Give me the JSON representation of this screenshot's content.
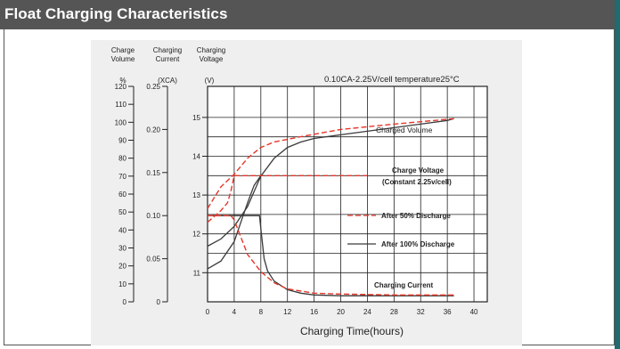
{
  "header": {
    "title": "Float Charging Characteristics"
  },
  "colors": {
    "header_bg": "#555555",
    "accent": "#1f6b70",
    "dark_series": "#3a3a3a",
    "red_series": "#e5372a"
  },
  "chart_data": {
    "type": "line",
    "xlabel": "Charging Time(hours)",
    "x_ticks": [
      "0",
      "4",
      "8",
      "12",
      "16",
      "20",
      "24",
      "28",
      "32",
      "36",
      "40"
    ],
    "xlim": [
      0,
      42
    ],
    "condition": "0.10CA-2.25V/cell   temperature25°C",
    "axes": [
      {
        "id": "volume",
        "title_line1": "Charge",
        "title_line2": "Volume",
        "unit": "%",
        "ticks": [
          "0",
          "10",
          "20",
          "30",
          "40",
          "50",
          "60",
          "70",
          "80",
          "90",
          "100",
          "110",
          "120"
        ],
        "range": [
          0,
          120
        ]
      },
      {
        "id": "current",
        "title_line1": "Charging",
        "title_line2": "Current",
        "unit": "(XCA)",
        "ticks": [
          "0",
          "0.05",
          "0.10",
          "0.15",
          "0.20",
          "0.25"
        ],
        "range": [
          0,
          0.25
        ]
      },
      {
        "id": "voltage",
        "title_line1": "Charging",
        "title_line2": "Voltage",
        "unit": "(V)",
        "ticks": [
          "11",
          "12",
          "13",
          "14",
          "15"
        ],
        "range": [
          10.25,
          15.8
        ]
      }
    ],
    "annotations": [
      {
        "id": "charged-volume",
        "text": "Charged Volume"
      },
      {
        "id": "charge-voltage",
        "text": "Charge Voltage"
      },
      {
        "id": "charge-voltage-sub",
        "text": "(Constant 2.25v/cell)"
      },
      {
        "id": "charging-current",
        "text": "Charging Current"
      }
    ],
    "legend": [
      {
        "name": "After 50% Discharge",
        "style": "dashed",
        "color": "#e5372a"
      },
      {
        "name": "After 100% Discharge",
        "style": "solid",
        "color": "#3a3a3a"
      }
    ],
    "series": [
      {
        "name": "After 100% Discharge",
        "quantity": "charged volume",
        "axis": "volume",
        "style": "solid",
        "points": [
          [
            0,
            31
          ],
          [
            2,
            35
          ],
          [
            4,
            42
          ],
          [
            6,
            53
          ],
          [
            8,
            70
          ],
          [
            10,
            80
          ],
          [
            12,
            86
          ],
          [
            14,
            89
          ],
          [
            16,
            91
          ],
          [
            20,
            93
          ],
          [
            24,
            95
          ],
          [
            28,
            97
          ],
          [
            32,
            99
          ],
          [
            36,
            101
          ],
          [
            37,
            102
          ]
        ]
      },
      {
        "name": "After 100% Discharge",
        "quantity": "charging voltage",
        "axis": "voltage",
        "style": "solid",
        "points": [
          [
            0,
            11.1
          ],
          [
            2,
            11.3
          ],
          [
            4,
            11.8
          ],
          [
            5,
            12.3
          ],
          [
            6,
            12.8
          ],
          [
            7,
            13.25
          ],
          [
            8,
            13.5
          ],
          [
            8.5,
            13.5
          ]
        ]
      },
      {
        "name": "After 100% Discharge",
        "quantity": "charging current",
        "axis": "current",
        "style": "solid",
        "points": [
          [
            0,
            0.1
          ],
          [
            7.8,
            0.1
          ],
          [
            8,
            0.085
          ],
          [
            8.5,
            0.05
          ],
          [
            9,
            0.036
          ],
          [
            10,
            0.024
          ],
          [
            12,
            0.014
          ],
          [
            14,
            0.01
          ],
          [
            16,
            0.008
          ],
          [
            20,
            0.007
          ],
          [
            28,
            0.007
          ],
          [
            37,
            0.007
          ]
        ]
      },
      {
        "name": "After 50% Discharge",
        "quantity": "charged volume",
        "axis": "volume",
        "style": "dashed",
        "points": [
          [
            0,
            52
          ],
          [
            1,
            58
          ],
          [
            2,
            64
          ],
          [
            4,
            71
          ],
          [
            6,
            80
          ],
          [
            8,
            86
          ],
          [
            10,
            89
          ],
          [
            14,
            92
          ],
          [
            20,
            96
          ],
          [
            28,
            99
          ],
          [
            37,
            102
          ]
        ]
      },
      {
        "name": "After 50% Discharge",
        "quantity": "charging voltage",
        "axis": "voltage",
        "style": "dashed",
        "points": [
          [
            0,
            12.3
          ],
          [
            1,
            12.45
          ],
          [
            2,
            12.6
          ],
          [
            3,
            12.8
          ],
          [
            3.5,
            13.1
          ],
          [
            4,
            13.5
          ],
          [
            8,
            13.5
          ],
          [
            12,
            13.5
          ],
          [
            18,
            13.5
          ],
          [
            24,
            13.5
          ]
        ]
      },
      {
        "name": "After 50% Discharge",
        "quantity": "charging current",
        "axis": "current",
        "style": "dashed",
        "points": [
          [
            0,
            0.1
          ],
          [
            3.5,
            0.1
          ],
          [
            4,
            0.095
          ],
          [
            5,
            0.075
          ],
          [
            6,
            0.055
          ],
          [
            8,
            0.035
          ],
          [
            10,
            0.022
          ],
          [
            12,
            0.015
          ],
          [
            16,
            0.01
          ],
          [
            20,
            0.009
          ],
          [
            28,
            0.008
          ],
          [
            37,
            0.008
          ]
        ]
      }
    ]
  }
}
